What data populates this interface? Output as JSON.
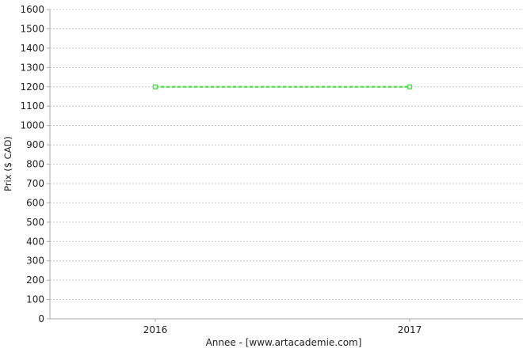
{
  "chart_data": {
    "type": "line",
    "title": "",
    "xlabel": "Annee - [www.artacademie.com]",
    "ylabel": "Prix ($ CAD)",
    "x": [
      2016,
      2017
    ],
    "xtick_labels": [
      "2016",
      "2017"
    ],
    "series": [
      {
        "name": "prix",
        "values": [
          1200,
          1200
        ]
      }
    ],
    "ylim": [
      0,
      1600
    ],
    "ytick_step": 100,
    "grid": "horizontal-dashed",
    "legend_position": "none",
    "colors": {
      "line": "#52d952",
      "line_base": "#b5efb5",
      "marker_fill": "#e4fae4",
      "grid": "#c9c9c9",
      "axis": "#aaaaaa",
      "text": "#222222"
    }
  }
}
